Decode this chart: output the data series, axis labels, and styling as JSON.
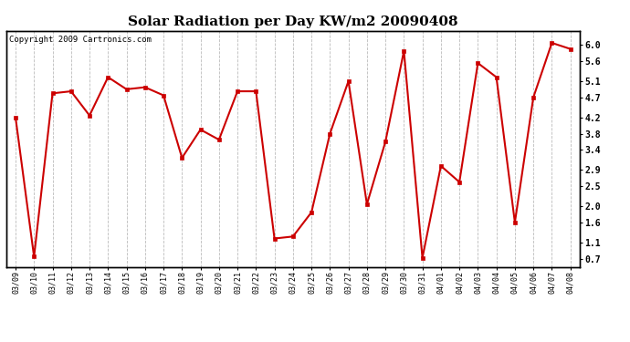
{
  "title": "Solar Radiation per Day KW/m2 20090408",
  "copyright_text": "Copyright 2009 Cartronics.com",
  "dates": [
    "03/09",
    "03/10",
    "03/11",
    "03/12",
    "03/13",
    "03/14",
    "03/15",
    "03/16",
    "03/17",
    "03/18",
    "03/19",
    "03/20",
    "03/21",
    "03/22",
    "03/23",
    "03/24",
    "03/25",
    "03/26",
    "03/27",
    "03/28",
    "03/29",
    "03/30",
    "03/31",
    "04/01",
    "04/02",
    "04/03",
    "04/04",
    "04/05",
    "04/06",
    "04/07",
    "04/08"
  ],
  "values": [
    4.2,
    0.75,
    4.8,
    4.85,
    4.25,
    5.2,
    4.9,
    4.95,
    4.75,
    3.2,
    3.9,
    3.65,
    4.85,
    4.85,
    1.2,
    1.25,
    1.85,
    3.8,
    5.1,
    2.05,
    3.6,
    5.85,
    0.72,
    3.0,
    2.6,
    5.55,
    5.2,
    1.6,
    4.7,
    6.05,
    5.9
  ],
  "line_color": "#cc0000",
  "marker_color": "#cc0000",
  "marker_size": 3,
  "line_width": 1.5,
  "ylim": [
    0.5,
    6.35
  ],
  "yticks": [
    0.7,
    1.1,
    1.6,
    2.0,
    2.5,
    2.9,
    3.4,
    3.8,
    4.2,
    4.7,
    5.1,
    5.6,
    6.0
  ],
  "grid_color": "#bbbbbb",
  "grid_linestyle": "--",
  "background_color": "#ffffff",
  "plot_bg_color": "#ffffff",
  "title_fontsize": 11,
  "copyright_fontsize": 6.5,
  "tick_fontsize": 6,
  "ytick_fontsize": 7
}
